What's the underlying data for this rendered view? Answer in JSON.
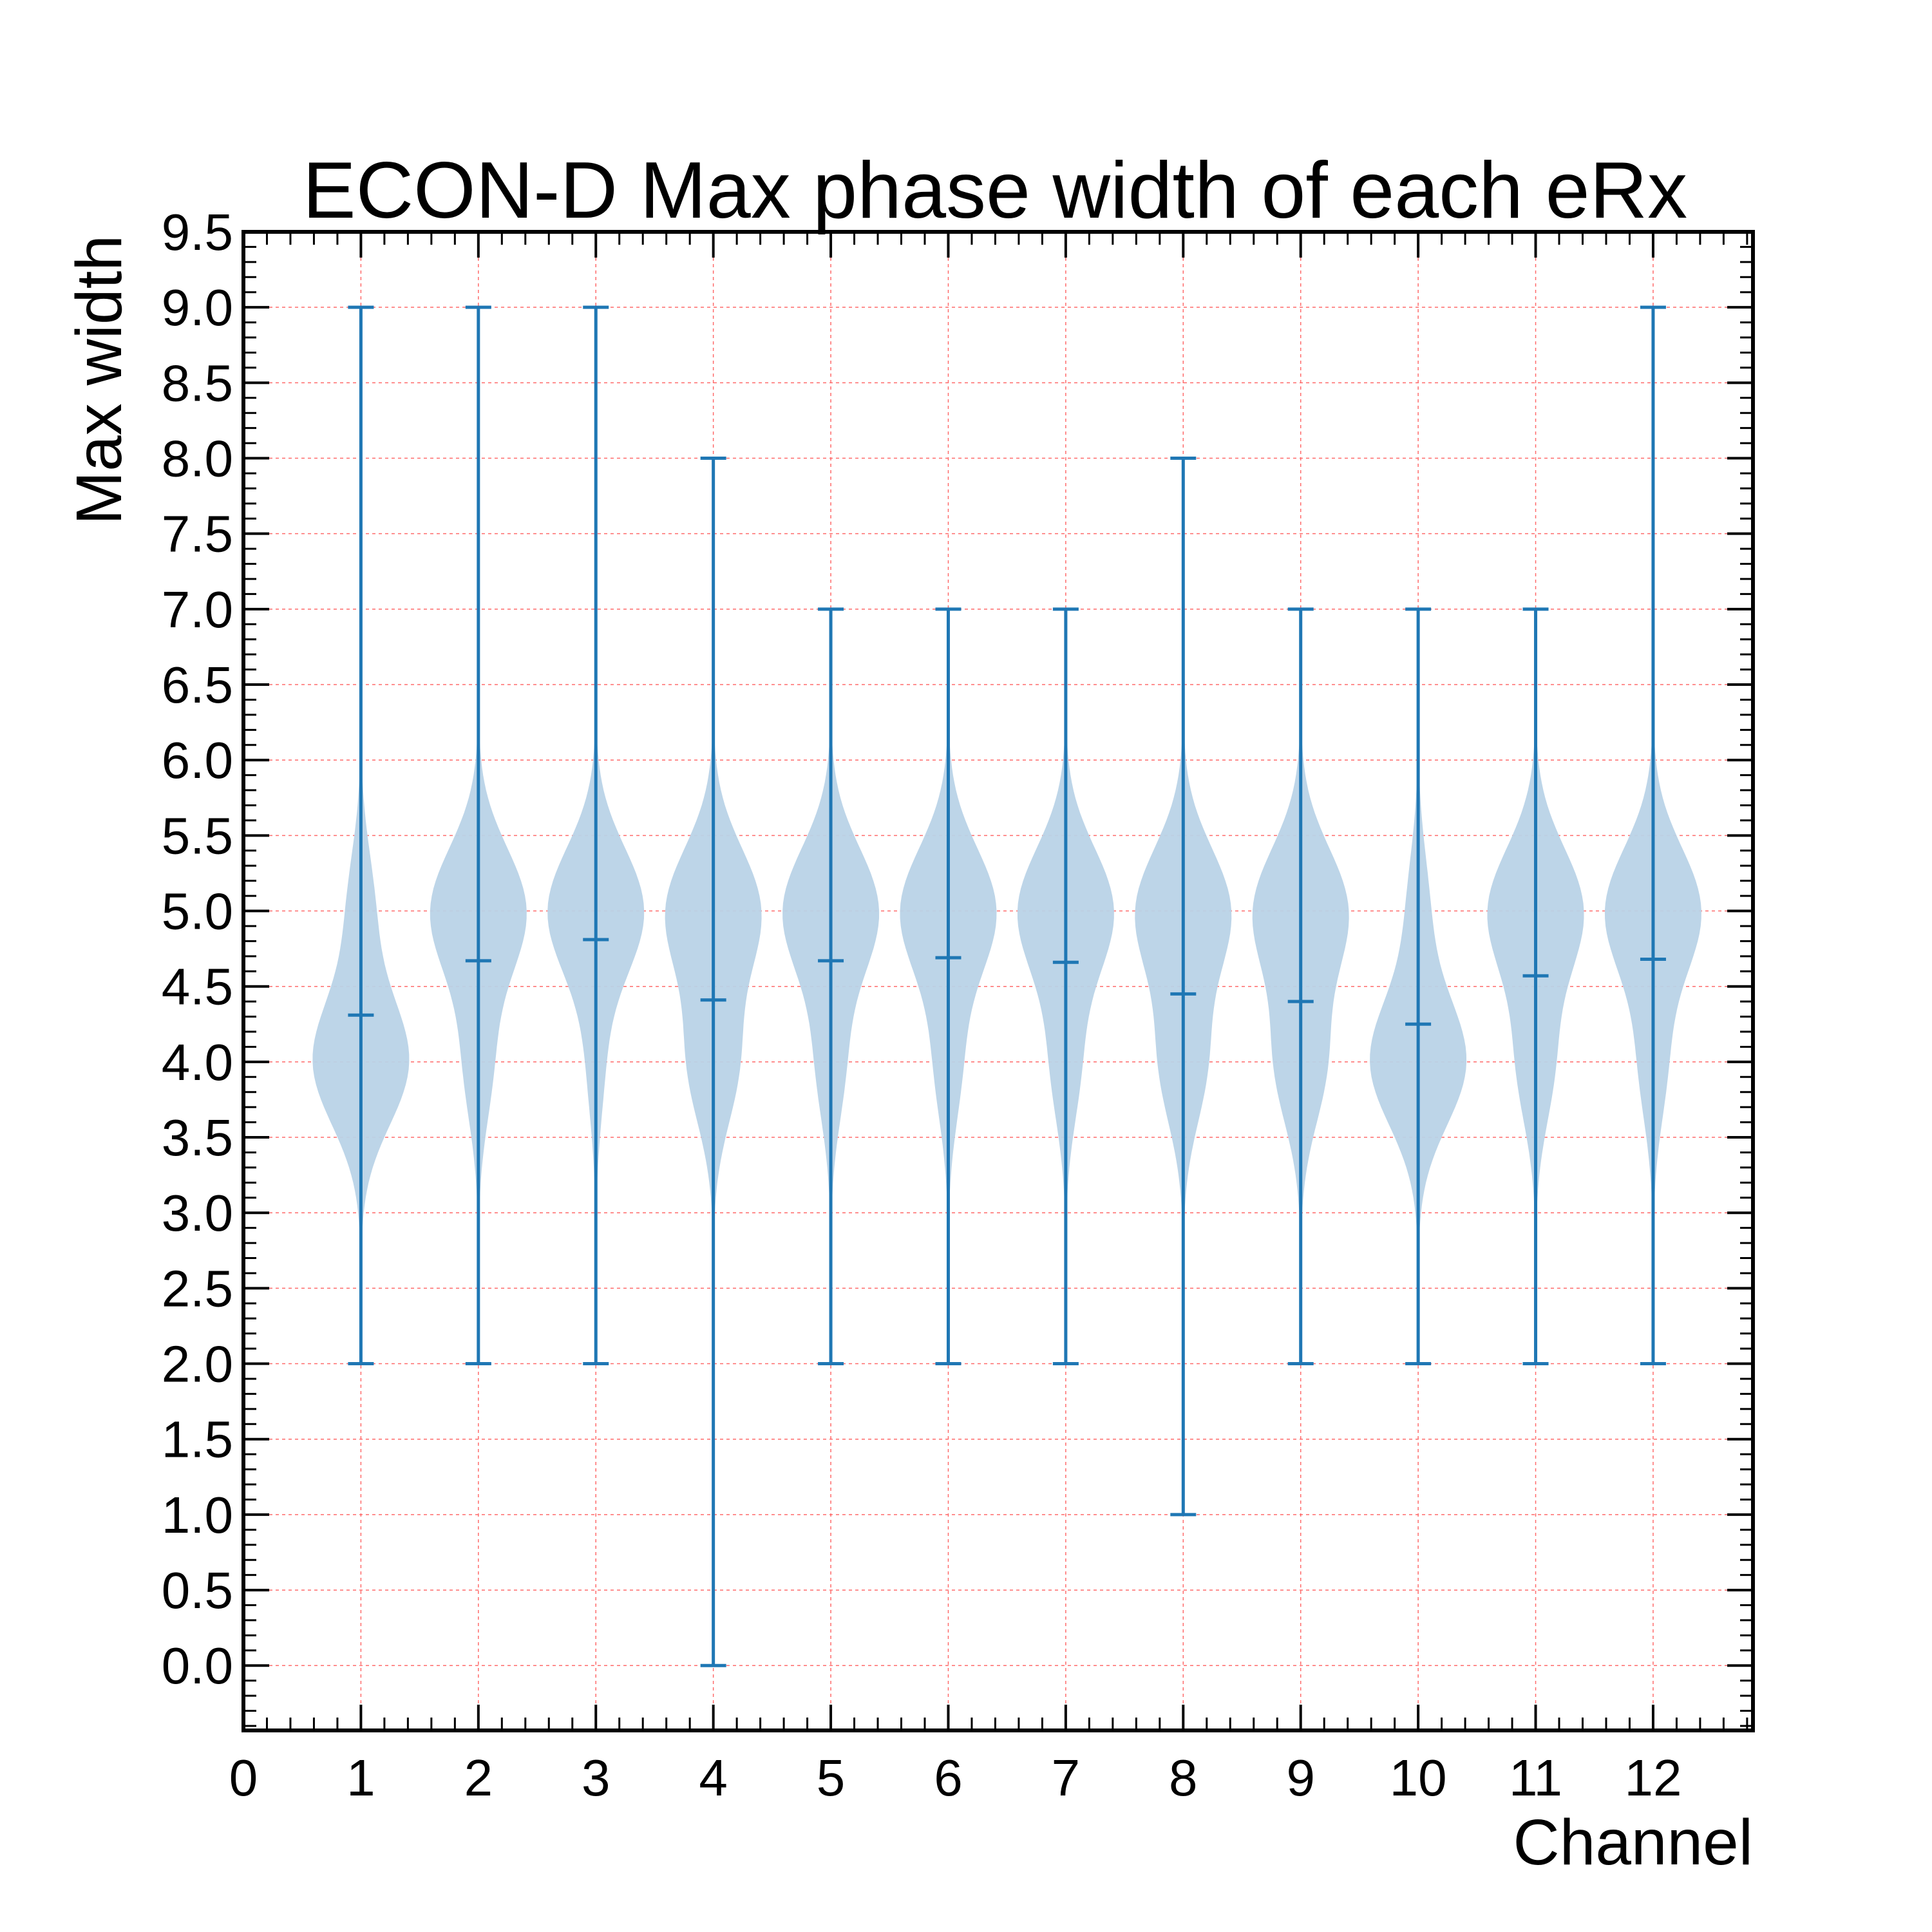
{
  "chart_data": {
    "type": "violin",
    "title": "ECON-D Max phase width of each eRx",
    "xlabel": "Channel",
    "ylabel": "Max width",
    "xlim": [
      0,
      12.85
    ],
    "ylim": [
      -0.43,
      9.5
    ],
    "xticks": [
      "0",
      "1",
      "2",
      "3",
      "4",
      "5",
      "6",
      "7",
      "8",
      "9",
      "10",
      "11",
      "12"
    ],
    "yticks": [
      "0.0",
      "0.5",
      "1.0",
      "1.5",
      "2.0",
      "2.5",
      "3.0",
      "3.5",
      "4.0",
      "4.5",
      "5.0",
      "5.5",
      "6.0",
      "6.5",
      "7.0",
      "7.5",
      "8.0",
      "8.5",
      "9.0",
      "9.5"
    ],
    "grid": true,
    "colors": {
      "violin_fill": "#b9d3e7",
      "stat_line": "#1f77b4",
      "grid": "#ff6b6b",
      "axis": "#000000"
    },
    "violins": [
      {
        "channel": 1,
        "min": 2,
        "max": 9,
        "mean": 4.31,
        "mode": 4.0
      },
      {
        "channel": 2,
        "min": 2,
        "max": 9,
        "mean": 4.67,
        "mode": 5.0
      },
      {
        "channel": 3,
        "min": 2,
        "max": 9,
        "mean": 4.81,
        "mode": 5.0
      },
      {
        "channel": 4,
        "min": 0,
        "max": 8,
        "mean": 4.41,
        "mode": 5.0
      },
      {
        "channel": 5,
        "min": 2,
        "max": 7,
        "mean": 4.67,
        "mode": 5.0
      },
      {
        "channel": 6,
        "min": 2,
        "max": 7,
        "mean": 4.69,
        "mode": 5.0
      },
      {
        "channel": 7,
        "min": 2,
        "max": 7,
        "mean": 4.66,
        "mode": 5.0
      },
      {
        "channel": 8,
        "min": 1,
        "max": 8,
        "mean": 4.45,
        "mode": 5.0
      },
      {
        "channel": 9,
        "min": 2,
        "max": 7,
        "mean": 4.4,
        "mode": 5.0
      },
      {
        "channel": 10,
        "min": 2,
        "max": 7,
        "mean": 4.25,
        "mode": 4.0
      },
      {
        "channel": 11,
        "min": 2,
        "max": 7,
        "mean": 4.57,
        "mode": 5.0
      },
      {
        "channel": 12,
        "min": 2,
        "max": 9,
        "mean": 4.68,
        "mode": 5.0
      }
    ]
  }
}
